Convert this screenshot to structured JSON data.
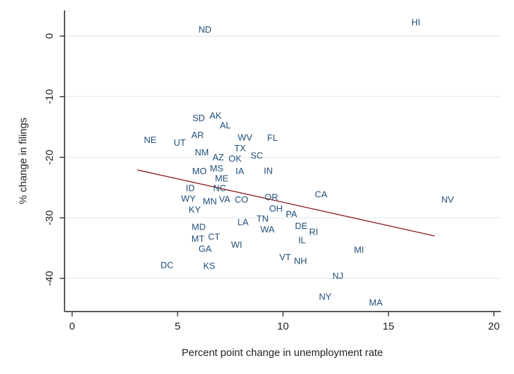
{
  "chart_data": {
    "type": "scatter",
    "title": "",
    "xlabel": "Percent point change in unemployment rate",
    "ylabel": "% change in filings",
    "xlim": [
      0,
      20
    ],
    "ylim": [
      -45,
      3
    ],
    "xticks": [
      "0",
      "5",
      "10",
      "15",
      "20"
    ],
    "yticks": [
      "0",
      "-10",
      "-20",
      "-30",
      "-40"
    ],
    "grid": "horizontal",
    "marker": "state-label",
    "label_color": "#1f4e79",
    "fit_line": {
      "color": "#8b1a1a",
      "x": [
        3.1,
        17.2
      ],
      "y": [
        -22.1,
        -33.0
      ]
    },
    "points": [
      {
        "label": "HI",
        "x": 16.3,
        "y": 2.3
      },
      {
        "label": "ND",
        "x": 6.3,
        "y": 1.1
      },
      {
        "label": "SD",
        "x": 6.0,
        "y": -13.5
      },
      {
        "label": "AK",
        "x": 6.8,
        "y": -13.1
      },
      {
        "label": "AL",
        "x": 7.0,
        "y": -14.4
      },
      {
        "label": "AR",
        "x": 5.95,
        "y": -16.3
      },
      {
        "label": "NE",
        "x": 3.7,
        "y": -17.1
      },
      {
        "label": "UT",
        "x": 5.1,
        "y": -17.6
      },
      {
        "label": "WV",
        "x": 8.2,
        "y": -16.7
      },
      {
        "label": "FL",
        "x": 9.5,
        "y": -16.8
      },
      {
        "label": "TX",
        "x": 7.8,
        "y": -17.8
      },
      {
        "label": "NM",
        "x": 6.15,
        "y": -19.2
      },
      {
        "label": "AZ",
        "x": 6.6,
        "y": -20.0
      },
      {
        "label": "MS",
        "x": 6.85,
        "y": -20.2
      },
      {
        "label": "OK",
        "x": 7.4,
        "y": -20.2
      },
      {
        "label": "SC",
        "x": 8.1,
        "y": -19.7
      },
      {
        "label": "MO",
        "x": 6.2,
        "y": -21.6
      },
      {
        "label": "ME",
        "x": 6.6,
        "y": -21.4
      },
      {
        "label": "IA",
        "x": 7.0,
        "y": -22.3
      },
      {
        "label": "IN",
        "x": 9.3,
        "y": -22.2
      },
      {
        "label": "ID",
        "x": 5.6,
        "y": -25.1
      },
      {
        "label": "NC",
        "x": 7.0,
        "y": -25.1
      },
      {
        "label": "WY",
        "x": 5.35,
        "y": -26.1
      },
      {
        "label": "MN",
        "x": 6.2,
        "y": -25.9
      },
      {
        "label": "VA",
        "x": 6.9,
        "y": -26.9
      },
      {
        "label": "CO",
        "x": 7.7,
        "y": -27.0
      },
      {
        "label": "OR",
        "x": 9.45,
        "y": -26.6
      },
      {
        "label": "CA",
        "x": 11.8,
        "y": -26.1
      },
      {
        "label": "NV",
        "x": 17.8,
        "y": -27.0
      },
      {
        "label": "KY",
        "x": 5.55,
        "y": -28.3
      },
      {
        "label": "OH",
        "x": 9.4,
        "y": -28.1
      },
      {
        "label": "PA",
        "x": 10.4,
        "y": -29.4
      },
      {
        "label": "LA",
        "x": 8.1,
        "y": -30.7
      },
      {
        "label": "TN",
        "x": 8.7,
        "y": -30.1
      },
      {
        "label": "WA",
        "x": 9.1,
        "y": -31.2
      },
      {
        "label": "DE",
        "x": 10.6,
        "y": -31.0
      },
      {
        "label": "RI",
        "x": 11.45,
        "y": -32.3
      },
      {
        "label": "MD",
        "x": 6.0,
        "y": -31.5
      },
      {
        "label": "MT",
        "x": 5.7,
        "y": -33.1
      },
      {
        "label": "CT",
        "x": 6.4,
        "y": -33.1
      },
      {
        "label": "GA",
        "x": 6.3,
        "y": -34.3
      },
      {
        "label": "WI",
        "x": 7.8,
        "y": -34.4
      },
      {
        "label": "IL",
        "x": 10.9,
        "y": -33.7
      },
      {
        "label": "MI",
        "x": 13.6,
        "y": -35.3
      },
      {
        "label": "VT",
        "x": 10.1,
        "y": -36.5
      },
      {
        "label": "NH",
        "x": 10.5,
        "y": -37.1
      },
      {
        "label": "DC",
        "x": 4.5,
        "y": -37.8
      },
      {
        "label": "KS",
        "x": 6.5,
        "y": -37.9
      },
      {
        "label": "NJ",
        "x": 12.6,
        "y": -39.6
      },
      {
        "label": "NY",
        "x": 12.0,
        "y": -43.0
      },
      {
        "label": "MA",
        "x": 14.4,
        "y": -44.0
      }
    ]
  }
}
